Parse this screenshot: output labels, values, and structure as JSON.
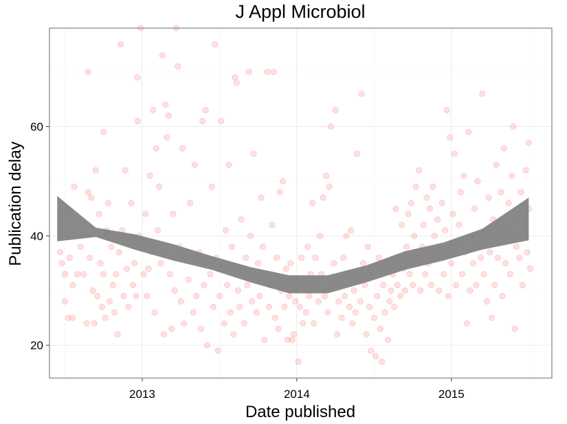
{
  "chart_data": {
    "type": "scatter",
    "title": "J Appl Microbiol",
    "xlabel": "Date published",
    "ylabel": "Publication delay",
    "x_unit": "year",
    "xlim": [
      2012.4,
      2015.65
    ],
    "ylim": [
      14,
      78
    ],
    "x_ticks": [
      2013,
      2014,
      2015
    ],
    "x_tick_labels": [
      "2013",
      "2014",
      "2015"
    ],
    "y_ticks": [
      20,
      40,
      60
    ],
    "y_tick_labels": [
      "20",
      "40",
      "60"
    ],
    "grid": true,
    "legend": "none",
    "point_color": "#f8766d",
    "point_opacity": 0.22,
    "smooth_color": "#7f7f7f",
    "series": [
      {
        "points": [
          [
            2012.47,
            37
          ],
          [
            2012.48,
            35
          ],
          [
            2012.5,
            33
          ],
          [
            2012.5,
            28
          ],
          [
            2012.52,
            25
          ],
          [
            2012.53,
            36
          ],
          [
            2012.55,
            31
          ],
          [
            2012.55,
            25
          ],
          [
            2012.56,
            49
          ],
          [
            2012.58,
            33
          ],
          [
            2012.6,
            38
          ],
          [
            2012.62,
            33
          ],
          [
            2012.64,
            24
          ],
          [
            2012.65,
            70
          ],
          [
            2012.65,
            48
          ],
          [
            2012.66,
            36
          ],
          [
            2012.67,
            47
          ],
          [
            2012.68,
            30
          ],
          [
            2012.69,
            24
          ],
          [
            2012.7,
            52
          ],
          [
            2012.71,
            29
          ],
          [
            2012.72,
            44
          ],
          [
            2012.73,
            35
          ],
          [
            2012.74,
            27
          ],
          [
            2012.75,
            59
          ],
          [
            2012.75,
            33
          ],
          [
            2012.76,
            25
          ],
          [
            2012.77,
            41
          ],
          [
            2012.78,
            46
          ],
          [
            2012.79,
            28
          ],
          [
            2012.8,
            38
          ],
          [
            2012.81,
            31
          ],
          [
            2012.82,
            26
          ],
          [
            2012.83,
            33
          ],
          [
            2012.84,
            22
          ],
          [
            2012.85,
            37
          ],
          [
            2012.86,
            75
          ],
          [
            2012.87,
            41
          ],
          [
            2012.88,
            29
          ],
          [
            2012.89,
            52
          ],
          [
            2012.9,
            34
          ],
          [
            2012.91,
            27
          ],
          [
            2012.92,
            39
          ],
          [
            2012.93,
            46
          ],
          [
            2012.94,
            31
          ],
          [
            2012.95,
            35
          ],
          [
            2012.96,
            29
          ],
          [
            2012.97,
            61
          ],
          [
            2012.97,
            69
          ],
          [
            2012.98,
            40
          ],
          [
            2012.99,
            78
          ],
          [
            2013.0,
            39
          ],
          [
            2013.01,
            33
          ],
          [
            2013.02,
            44
          ],
          [
            2013.03,
            29
          ],
          [
            2013.04,
            34
          ],
          [
            2013.05,
            51
          ],
          [
            2013.06,
            37
          ],
          [
            2013.07,
            63
          ],
          [
            2013.08,
            26
          ],
          [
            2013.09,
            56
          ],
          [
            2013.1,
            41
          ],
          [
            2013.11,
            49
          ],
          [
            2013.12,
            35
          ],
          [
            2013.13,
            73
          ],
          [
            2013.14,
            22
          ],
          [
            2013.15,
            64
          ],
          [
            2013.16,
            58
          ],
          [
            2013.17,
            62
          ],
          [
            2013.18,
            33
          ],
          [
            2013.19,
            23
          ],
          [
            2013.2,
            44
          ],
          [
            2013.21,
            30
          ],
          [
            2013.22,
            78
          ],
          [
            2013.23,
            71
          ],
          [
            2013.24,
            38
          ],
          [
            2013.25,
            28
          ],
          [
            2013.26,
            56
          ],
          [
            2013.27,
            24
          ],
          [
            2013.28,
            36
          ],
          [
            2013.3,
            32
          ],
          [
            2013.31,
            46
          ],
          [
            2013.33,
            26
          ],
          [
            2013.34,
            53
          ],
          [
            2013.35,
            29
          ],
          [
            2013.37,
            37
          ],
          [
            2013.38,
            23
          ],
          [
            2013.39,
            61
          ],
          [
            2013.4,
            31
          ],
          [
            2013.41,
            63
          ],
          [
            2013.42,
            20
          ],
          [
            2013.44,
            33
          ],
          [
            2013.45,
            49
          ],
          [
            2013.46,
            27
          ],
          [
            2013.47,
            75
          ],
          [
            2013.48,
            36
          ],
          [
            2013.49,
            19
          ],
          [
            2013.5,
            29
          ],
          [
            2013.51,
            61
          ],
          [
            2013.52,
            35
          ],
          [
            2013.53,
            24
          ],
          [
            2013.54,
            41
          ],
          [
            2013.55,
            31
          ],
          [
            2013.56,
            53
          ],
          [
            2013.57,
            26
          ],
          [
            2013.58,
            38
          ],
          [
            2013.59,
            22
          ],
          [
            2013.6,
            69
          ],
          [
            2013.61,
            68
          ],
          [
            2013.62,
            30
          ],
          [
            2013.63,
            27
          ],
          [
            2013.64,
            43
          ],
          [
            2013.65,
            34
          ],
          [
            2013.66,
            24
          ],
          [
            2013.67,
            36
          ],
          [
            2013.68,
            31
          ],
          [
            2013.69,
            70
          ],
          [
            2013.7,
            40
          ],
          [
            2013.71,
            28
          ],
          [
            2013.72,
            55
          ],
          [
            2013.73,
            33
          ],
          [
            2013.74,
            26
          ],
          [
            2013.75,
            35
          ],
          [
            2013.76,
            29
          ],
          [
            2013.77,
            47
          ],
          [
            2013.78,
            38
          ],
          [
            2013.79,
            21
          ],
          [
            2013.8,
            33
          ],
          [
            2013.81,
            70
          ],
          [
            2013.82,
            27
          ],
          [
            2013.83,
            31
          ],
          [
            2013.84,
            42
          ],
          [
            2013.85,
            70
          ],
          [
            2013.86,
            25
          ],
          [
            2013.87,
            36
          ],
          [
            2013.88,
            23
          ],
          [
            2013.89,
            48
          ],
          [
            2013.9,
            30
          ],
          [
            2013.91,
            50
          ],
          [
            2013.92,
            27
          ],
          [
            2013.93,
            34
          ],
          [
            2013.94,
            21
          ],
          [
            2013.95,
            29
          ],
          [
            2013.96,
            35
          ],
          [
            2013.97,
            21
          ],
          [
            2013.98,
            22
          ],
          [
            2013.99,
            28
          ],
          [
            2014.0,
            32
          ],
          [
            2014.01,
            17
          ],
          [
            2014.02,
            27
          ],
          [
            2014.03,
            36
          ],
          [
            2014.04,
            24
          ],
          [
            2014.05,
            31
          ],
          [
            2014.06,
            26
          ],
          [
            2014.07,
            38
          ],
          [
            2014.08,
            29
          ],
          [
            2014.09,
            33
          ],
          [
            2014.1,
            46
          ],
          [
            2014.11,
            24
          ],
          [
            2014.12,
            36
          ],
          [
            2014.13,
            31
          ],
          [
            2014.14,
            28
          ],
          [
            2014.15,
            40
          ],
          [
            2014.16,
            33
          ],
          [
            2014.17,
            47
          ],
          [
            2014.18,
            29
          ],
          [
            2014.19,
            51
          ],
          [
            2014.2,
            26
          ],
          [
            2014.21,
            49
          ],
          [
            2014.22,
            60
          ],
          [
            2014.23,
            31
          ],
          [
            2014.24,
            35
          ],
          [
            2014.25,
            63
          ],
          [
            2014.26,
            22
          ],
          [
            2014.27,
            28
          ],
          [
            2014.28,
            31
          ],
          [
            2014.29,
            25
          ],
          [
            2014.3,
            36
          ],
          [
            2014.31,
            29
          ],
          [
            2014.32,
            40
          ],
          [
            2014.33,
            33
          ],
          [
            2014.34,
            27
          ],
          [
            2014.35,
            41
          ],
          [
            2014.36,
            24
          ],
          [
            2014.37,
            30
          ],
          [
            2014.38,
            26
          ],
          [
            2014.39,
            55
          ],
          [
            2014.4,
            33
          ],
          [
            2014.41,
            28
          ],
          [
            2014.42,
            66
          ],
          [
            2014.43,
            35
          ],
          [
            2014.44,
            31
          ],
          [
            2014.45,
            22
          ],
          [
            2014.46,
            38
          ],
          [
            2014.47,
            27
          ],
          [
            2014.48,
            19
          ],
          [
            2014.49,
            33
          ],
          [
            2014.5,
            25
          ],
          [
            2014.51,
            18
          ],
          [
            2014.52,
            29
          ],
          [
            2014.53,
            36
          ],
          [
            2014.54,
            23
          ],
          [
            2014.55,
            17
          ],
          [
            2014.56,
            31
          ],
          [
            2014.57,
            26
          ],
          [
            2014.58,
            35
          ],
          [
            2014.59,
            21
          ],
          [
            2014.6,
            28
          ],
          [
            2014.61,
            30
          ],
          [
            2014.62,
            33
          ],
          [
            2014.63,
            27
          ],
          [
            2014.64,
            45
          ],
          [
            2014.65,
            31
          ],
          [
            2014.66,
            36
          ],
          [
            2014.67,
            29
          ],
          [
            2014.68,
            42
          ],
          [
            2014.69,
            34
          ],
          [
            2014.7,
            30
          ],
          [
            2014.71,
            38
          ],
          [
            2014.72,
            44
          ],
          [
            2014.73,
            33
          ],
          [
            2014.74,
            46
          ],
          [
            2014.75,
            31
          ],
          [
            2014.76,
            40
          ],
          [
            2014.77,
            49
          ],
          [
            2014.78,
            36
          ],
          [
            2014.79,
            52
          ],
          [
            2014.8,
            30
          ],
          [
            2014.81,
            38
          ],
          [
            2014.82,
            42
          ],
          [
            2014.83,
            33
          ],
          [
            2014.84,
            47
          ],
          [
            2014.85,
            35
          ],
          [
            2014.86,
            45
          ],
          [
            2014.87,
            31
          ],
          [
            2014.88,
            49
          ],
          [
            2014.89,
            40
          ],
          [
            2014.9,
            36
          ],
          [
            2014.91,
            43
          ],
          [
            2014.92,
            30
          ],
          [
            2014.93,
            38
          ],
          [
            2014.94,
            46
          ],
          [
            2014.95,
            33
          ],
          [
            2014.96,
            41
          ],
          [
            2014.97,
            63
          ],
          [
            2014.98,
            29
          ],
          [
            2014.99,
            58
          ],
          [
            2015.0,
            35
          ],
          [
            2015.01,
            44
          ],
          [
            2015.02,
            55
          ],
          [
            2015.03,
            31
          ],
          [
            2015.04,
            38
          ],
          [
            2015.05,
            42
          ],
          [
            2015.06,
            48
          ],
          [
            2015.07,
            33
          ],
          [
            2015.08,
            51
          ],
          [
            2015.09,
            37
          ],
          [
            2015.1,
            24
          ],
          [
            2015.11,
            59
          ],
          [
            2015.12,
            30
          ],
          [
            2015.13,
            40
          ],
          [
            2015.14,
            35
          ],
          [
            2015.15,
            45
          ],
          [
            2015.16,
            31
          ],
          [
            2015.17,
            50
          ],
          [
            2015.18,
            38
          ],
          [
            2015.19,
            36
          ],
          [
            2015.2,
            66
          ],
          [
            2015.21,
            33
          ],
          [
            2015.22,
            41
          ],
          [
            2015.23,
            28
          ],
          [
            2015.24,
            47
          ],
          [
            2015.25,
            37
          ],
          [
            2015.26,
            25
          ],
          [
            2015.27,
            43
          ],
          [
            2015.28,
            31
          ],
          [
            2015.29,
            53
          ],
          [
            2015.3,
            36
          ],
          [
            2015.31,
            40
          ],
          [
            2015.32,
            48
          ],
          [
            2015.33,
            29
          ],
          [
            2015.34,
            56
          ],
          [
            2015.35,
            35
          ],
          [
            2015.36,
            41
          ],
          [
            2015.37,
            46
          ],
          [
            2015.38,
            33
          ],
          [
            2015.39,
            51
          ],
          [
            2015.4,
            60
          ],
          [
            2015.41,
            23
          ],
          [
            2015.42,
            38
          ],
          [
            2015.43,
            44
          ],
          [
            2015.44,
            36
          ],
          [
            2015.45,
            48
          ],
          [
            2015.46,
            31
          ],
          [
            2015.47,
            42
          ],
          [
            2015.48,
            52
          ],
          [
            2015.49,
            37
          ],
          [
            2015.5,
            45
          ],
          [
            2015.5,
            57
          ],
          [
            2015.51,
            34
          ]
        ]
      }
    ],
    "smooth": {
      "x": [
        2012.45,
        2012.7,
        2012.95,
        2013.2,
        2013.45,
        2013.7,
        2013.95,
        2014.2,
        2014.45,
        2014.7,
        2014.95,
        2015.2,
        2015.5
      ],
      "lower": [
        39,
        39.8,
        37.5,
        35.5,
        33.8,
        31.5,
        29.5,
        29.5,
        31.5,
        33.8,
        35.5,
        37.5,
        39.2
      ],
      "upper": [
        47.3,
        41.5,
        40.3,
        38.5,
        36.3,
        34.3,
        32.8,
        32.8,
        34.6,
        37.2,
        38.8,
        41.3,
        47.0
      ]
    }
  }
}
